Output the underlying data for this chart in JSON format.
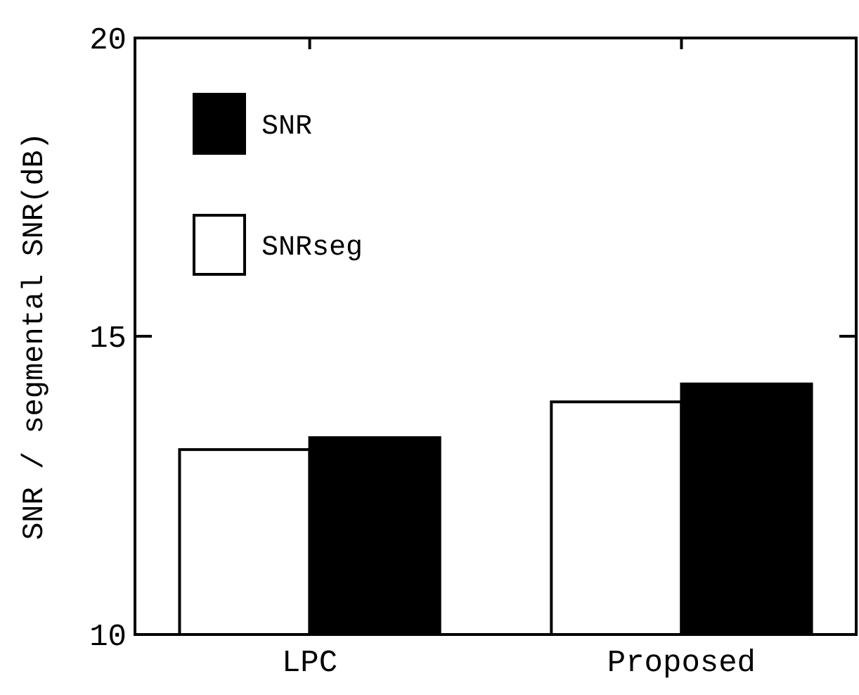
{
  "chart_data": {
    "type": "bar",
    "ylabel": "SNR / segmental SNR(dB)",
    "categories": [
      "LPC",
      "Proposed"
    ],
    "series": [
      {
        "name": "SNRseg",
        "color": "#ffffff",
        "values": [
          13.1,
          13.9
        ]
      },
      {
        "name": "SNR",
        "color": "#000000",
        "values": [
          13.3,
          14.2
        ]
      }
    ],
    "ylim": [
      10,
      20
    ],
    "yticks": [
      10,
      15,
      20
    ],
    "legend": "top left",
    "grid": false
  }
}
